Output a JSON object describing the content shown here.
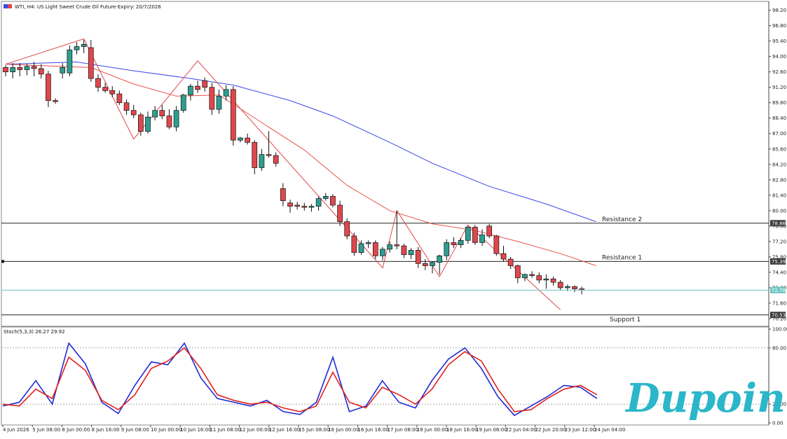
{
  "header": {
    "symbol_line": "WTI, H4:  US Light Sweet Crude Oil Future-Expiry: 20/7/2026"
  },
  "brand": {
    "logo_text": "Dupoin",
    "logo_color": "#2bb6c9"
  },
  "colors": {
    "bull": "#2e9e8f",
    "bear": "#e0474c",
    "ma_fast": "#e8524a",
    "ma_slow": "#3b49e6",
    "stoch_main": "#1f2ad6",
    "stoch_signal": "#e3221d",
    "current_line": "#6fc7c5",
    "zigzag": "#e0474c"
  },
  "chart_data": [
    {
      "type": "candlestick",
      "title": "WTI, H4:  US Light Sweet Crude Oil Future-Expiry: 20/7/2026",
      "ylim": [
        69.5,
        99.0
      ],
      "y_ticks": [
        98.2,
        96.8,
        95.4,
        94.0,
        92.6,
        91.2,
        89.8,
        88.4,
        87.0,
        85.6,
        84.2,
        82.8,
        81.4,
        80.0,
        78.6,
        77.2,
        75.8,
        74.4,
        73.0,
        71.6,
        70.2
      ],
      "x_labels": [
        "4 Jun 2026",
        "5 Jun 08:00",
        "8 Jun 00:00",
        "8 Jun 16:00",
        "9 Jun 08:00",
        "10 Jun 00:00",
        "10 Jun 16:00",
        "11 Jun 08:00",
        "12 Jun 00:00",
        "12 Jun 16:00",
        "15 Jun 08:00",
        "16 Jun 00:00",
        "16 Jun 16:00",
        "17 Jun 08:00",
        "18 Jun 00:00",
        "18 Jun 16:00",
        "19 Jun 08:00",
        "22 Jun 04:00",
        "22 Jun 20:00",
        "23 Jun 12:00",
        "24 Jun 04:00"
      ],
      "candles": [
        [
          93.0,
          93.2,
          92.2,
          92.6
        ],
        [
          92.6,
          93.4,
          92.0,
          93.0
        ],
        [
          93.0,
          93.4,
          92.2,
          92.8
        ],
        [
          92.8,
          93.3,
          92.3,
          93.1
        ],
        [
          93.1,
          93.5,
          92.2,
          92.9
        ],
        [
          92.9,
          93.3,
          92.0,
          92.4
        ],
        [
          92.4,
          92.7,
          89.4,
          90.0
        ],
        [
          90.0,
          90.2,
          89.7,
          89.9
        ],
        [
          92.5,
          93.4,
          92.0,
          93.0
        ],
        [
          92.5,
          95.0,
          92.2,
          94.6
        ],
        [
          94.6,
          95.3,
          94.2,
          94.9
        ],
        [
          94.9,
          95.5,
          94.3,
          95.1
        ],
        [
          94.8,
          95.5,
          91.7,
          92.0
        ],
        [
          92.0,
          92.4,
          90.8,
          91.2
        ],
        [
          91.2,
          91.6,
          90.7,
          90.9
        ],
        [
          90.9,
          91.3,
          90.3,
          90.6
        ],
        [
          90.6,
          90.9,
          89.6,
          89.8
        ],
        [
          89.8,
          90.1,
          88.7,
          89.1
        ],
        [
          89.1,
          89.6,
          88.4,
          88.7
        ],
        [
          88.7,
          88.9,
          86.8,
          87.2
        ],
        [
          87.2,
          89.0,
          87.0,
          88.5
        ],
        [
          88.5,
          89.5,
          88.2,
          89.1
        ],
        [
          89.1,
          89.6,
          88.3,
          88.6
        ],
        [
          88.6,
          89.2,
          87.4,
          87.6
        ],
        [
          87.6,
          89.5,
          87.2,
          89.1
        ],
        [
          89.1,
          90.6,
          88.9,
          90.5
        ],
        [
          90.5,
          91.5,
          90.0,
          91.3
        ],
        [
          91.3,
          91.8,
          90.7,
          91.0
        ],
        [
          91.8,
          92.1,
          90.8,
          91.2
        ],
        [
          91.2,
          91.6,
          88.7,
          89.2
        ],
        [
          89.2,
          91.0,
          88.8,
          90.4
        ],
        [
          90.4,
          91.4,
          90.0,
          91.0
        ],
        [
          91.0,
          91.3,
          85.9,
          86.4
        ],
        [
          86.4,
          86.7,
          86.2,
          86.6
        ],
        [
          86.6,
          87.0,
          86.0,
          86.2
        ],
        [
          86.2,
          86.4,
          83.3,
          83.9
        ],
        [
          83.9,
          85.6,
          83.6,
          85.1
        ],
        [
          85.1,
          87.2,
          84.8,
          85.0
        ],
        [
          85.0,
          85.3,
          84.0,
          84.3
        ],
        [
          82.0,
          82.5,
          80.4,
          80.9
        ],
        [
          80.7,
          81.0,
          79.8,
          80.4
        ],
        [
          80.5,
          80.8,
          80.1,
          80.4
        ],
        [
          80.4,
          80.7,
          80.0,
          80.3
        ],
        [
          80.3,
          80.6,
          79.9,
          80.4
        ],
        [
          80.4,
          81.3,
          80.0,
          81.1
        ],
        [
          81.1,
          81.6,
          80.9,
          81.3
        ],
        [
          81.3,
          81.5,
          80.3,
          80.5
        ],
        [
          80.5,
          80.9,
          78.6,
          79.0
        ],
        [
          79.0,
          79.3,
          77.4,
          77.7
        ],
        [
          77.7,
          78.0,
          75.9,
          76.2
        ],
        [
          76.2,
          77.3,
          76.0,
          77.0
        ],
        [
          77.0,
          77.3,
          76.6,
          77.1
        ],
        [
          77.1,
          77.3,
          75.6,
          75.9
        ],
        [
          75.9,
          76.7,
          75.5,
          76.5
        ],
        [
          76.5,
          77.2,
          76.2,
          76.9
        ],
        [
          76.9,
          80.0,
          76.5,
          76.8
        ],
        [
          76.8,
          77.0,
          75.7,
          76.0
        ],
        [
          76.0,
          76.6,
          75.6,
          76.4
        ],
        [
          76.4,
          76.7,
          74.8,
          75.2
        ],
        [
          75.2,
          75.6,
          74.6,
          75.0
        ],
        [
          75.0,
          75.4,
          74.3,
          75.3
        ],
        [
          75.3,
          76.0,
          74.2,
          75.9
        ],
        [
          75.9,
          77.4,
          75.5,
          77.1
        ],
        [
          77.1,
          77.6,
          76.6,
          76.9
        ],
        [
          76.9,
          77.5,
          76.6,
          77.3
        ],
        [
          77.3,
          78.6,
          77.0,
          78.5
        ],
        [
          78.5,
          78.7,
          76.9,
          77.1
        ],
        [
          77.1,
          78.3,
          76.8,
          77.8
        ],
        [
          78.6,
          78.8,
          77.5,
          77.7
        ],
        [
          77.7,
          77.8,
          75.9,
          76.1
        ],
        [
          76.1,
          76.8,
          75.4,
          75.6
        ],
        [
          75.6,
          75.8,
          74.7,
          75.0
        ],
        [
          75.0,
          75.1,
          73.4,
          73.9
        ],
        [
          73.9,
          74.3,
          73.6,
          74.2
        ],
        [
          74.2,
          74.5,
          73.9,
          74.1
        ],
        [
          74.1,
          74.4,
          73.4,
          73.7
        ],
        [
          73.7,
          74.2,
          72.9,
          73.8
        ],
        [
          73.8,
          74.0,
          73.2,
          73.5
        ],
        [
          73.5,
          73.7,
          72.8,
          73.0
        ],
        [
          73.0,
          73.3,
          72.7,
          73.1
        ],
        [
          73.1,
          73.2,
          72.6,
          72.9
        ],
        [
          72.9,
          73.1,
          72.4,
          72.8
        ]
      ],
      "ma_fast_points": [
        [
          0,
          93.3
        ],
        [
          12,
          93.0
        ],
        [
          18,
          91.5
        ],
        [
          24,
          90.4
        ],
        [
          30,
          90.5
        ],
        [
          36,
          88.0
        ],
        [
          42,
          85.5
        ],
        [
          48,
          82.3
        ],
        [
          54,
          80.0
        ],
        [
          60,
          78.8
        ],
        [
          66,
          78.2
        ],
        [
          72,
          77.2
        ],
        [
          78,
          76.1
        ],
        [
          83,
          75.0
        ]
      ],
      "ma_slow_points": [
        [
          0,
          93.3
        ],
        [
          10,
          93.5
        ],
        [
          18,
          92.7
        ],
        [
          26,
          92.0
        ],
        [
          32,
          91.4
        ],
        [
          40,
          90.0
        ],
        [
          46,
          88.6
        ],
        [
          54,
          86.2
        ],
        [
          60,
          84.3
        ],
        [
          68,
          82.2
        ],
        [
          76,
          80.6
        ],
        [
          83,
          79.0
        ]
      ],
      "zigzag_points": [
        [
          0,
          93.3
        ],
        [
          11,
          95.6
        ],
        [
          18,
          86.5
        ],
        [
          27,
          93.6
        ],
        [
          53,
          74.8
        ],
        [
          55,
          80.0
        ],
        [
          61,
          74.0
        ],
        [
          65,
          78.7
        ],
        [
          78,
          71.0
        ]
      ],
      "levels": [
        {
          "name": "Resistance 2",
          "value": 78.86,
          "tag": "78.86",
          "tag_color": "#3a3a3a"
        },
        {
          "name": "Resistance 1",
          "value": 75.39,
          "tag": "75.39",
          "tag_color": "#3a3a3a"
        },
        {
          "name": "Support 1",
          "value": 70.53,
          "tag": "70.53",
          "tag_color": "#3a3a3a"
        }
      ],
      "current_price": {
        "value": 72.78,
        "tag": "72.78"
      }
    },
    {
      "type": "line",
      "title": "Stoch(5,3,3) 26.27 29.92",
      "ylim": [
        0,
        100
      ],
      "y_ticks": [
        100.0,
        80.0,
        20.0,
        0.0
      ],
      "levels": [
        80,
        20
      ],
      "series": [
        {
          "name": "main",
          "points": [
            [
              0,
              18
            ],
            [
              3,
              22
            ],
            [
              6,
              45
            ],
            [
              9,
              20
            ],
            [
              12,
              85
            ],
            [
              15,
              63
            ],
            [
              18,
              22
            ],
            [
              21,
              10
            ],
            [
              24,
              40
            ],
            [
              27,
              65
            ],
            [
              30,
              62
            ],
            [
              33,
              85
            ],
            [
              36,
              48
            ],
            [
              39,
              26
            ],
            [
              42,
              22
            ],
            [
              45,
              18
            ],
            [
              48,
              24
            ],
            [
              51,
              12
            ],
            [
              54,
              9
            ],
            [
              57,
              22
            ],
            [
              60,
              70
            ],
            [
              63,
              12
            ],
            [
              66,
              18
            ],
            [
              69,
              45
            ],
            [
              72,
              22
            ],
            [
              75,
              16
            ],
            [
              78,
              45
            ],
            [
              81,
              68
            ],
            [
              84,
              80
            ],
            [
              87,
              58
            ],
            [
              90,
              28
            ],
            [
              93,
              8
            ],
            [
              96,
              18
            ],
            [
              99,
              28
            ],
            [
              102,
              40
            ],
            [
              105,
              38
            ],
            [
              108,
              26
            ]
          ]
        },
        {
          "name": "signal",
          "points": [
            [
              0,
              20
            ],
            [
              3,
              18
            ],
            [
              6,
              36
            ],
            [
              9,
              26
            ],
            [
              12,
              70
            ],
            [
              15,
              56
            ],
            [
              18,
              24
            ],
            [
              21,
              14
            ],
            [
              24,
              30
            ],
            [
              27,
              58
            ],
            [
              30,
              66
            ],
            [
              33,
              80
            ],
            [
              36,
              58
            ],
            [
              39,
              30
            ],
            [
              42,
              24
            ],
            [
              45,
              20
            ],
            [
              48,
              22
            ],
            [
              51,
              16
            ],
            [
              54,
              12
            ],
            [
              57,
              18
            ],
            [
              60,
              54
            ],
            [
              63,
              22
            ],
            [
              66,
              16
            ],
            [
              69,
              38
            ],
            [
              72,
              30
            ],
            [
              75,
              20
            ],
            [
              78,
              36
            ],
            [
              81,
              62
            ],
            [
              84,
              76
            ],
            [
              87,
              66
            ],
            [
              90,
              36
            ],
            [
              93,
              12
            ],
            [
              96,
              14
            ],
            [
              99,
              26
            ],
            [
              102,
              36
            ],
            [
              105,
              40
            ],
            [
              108,
              30
            ]
          ]
        }
      ]
    }
  ]
}
